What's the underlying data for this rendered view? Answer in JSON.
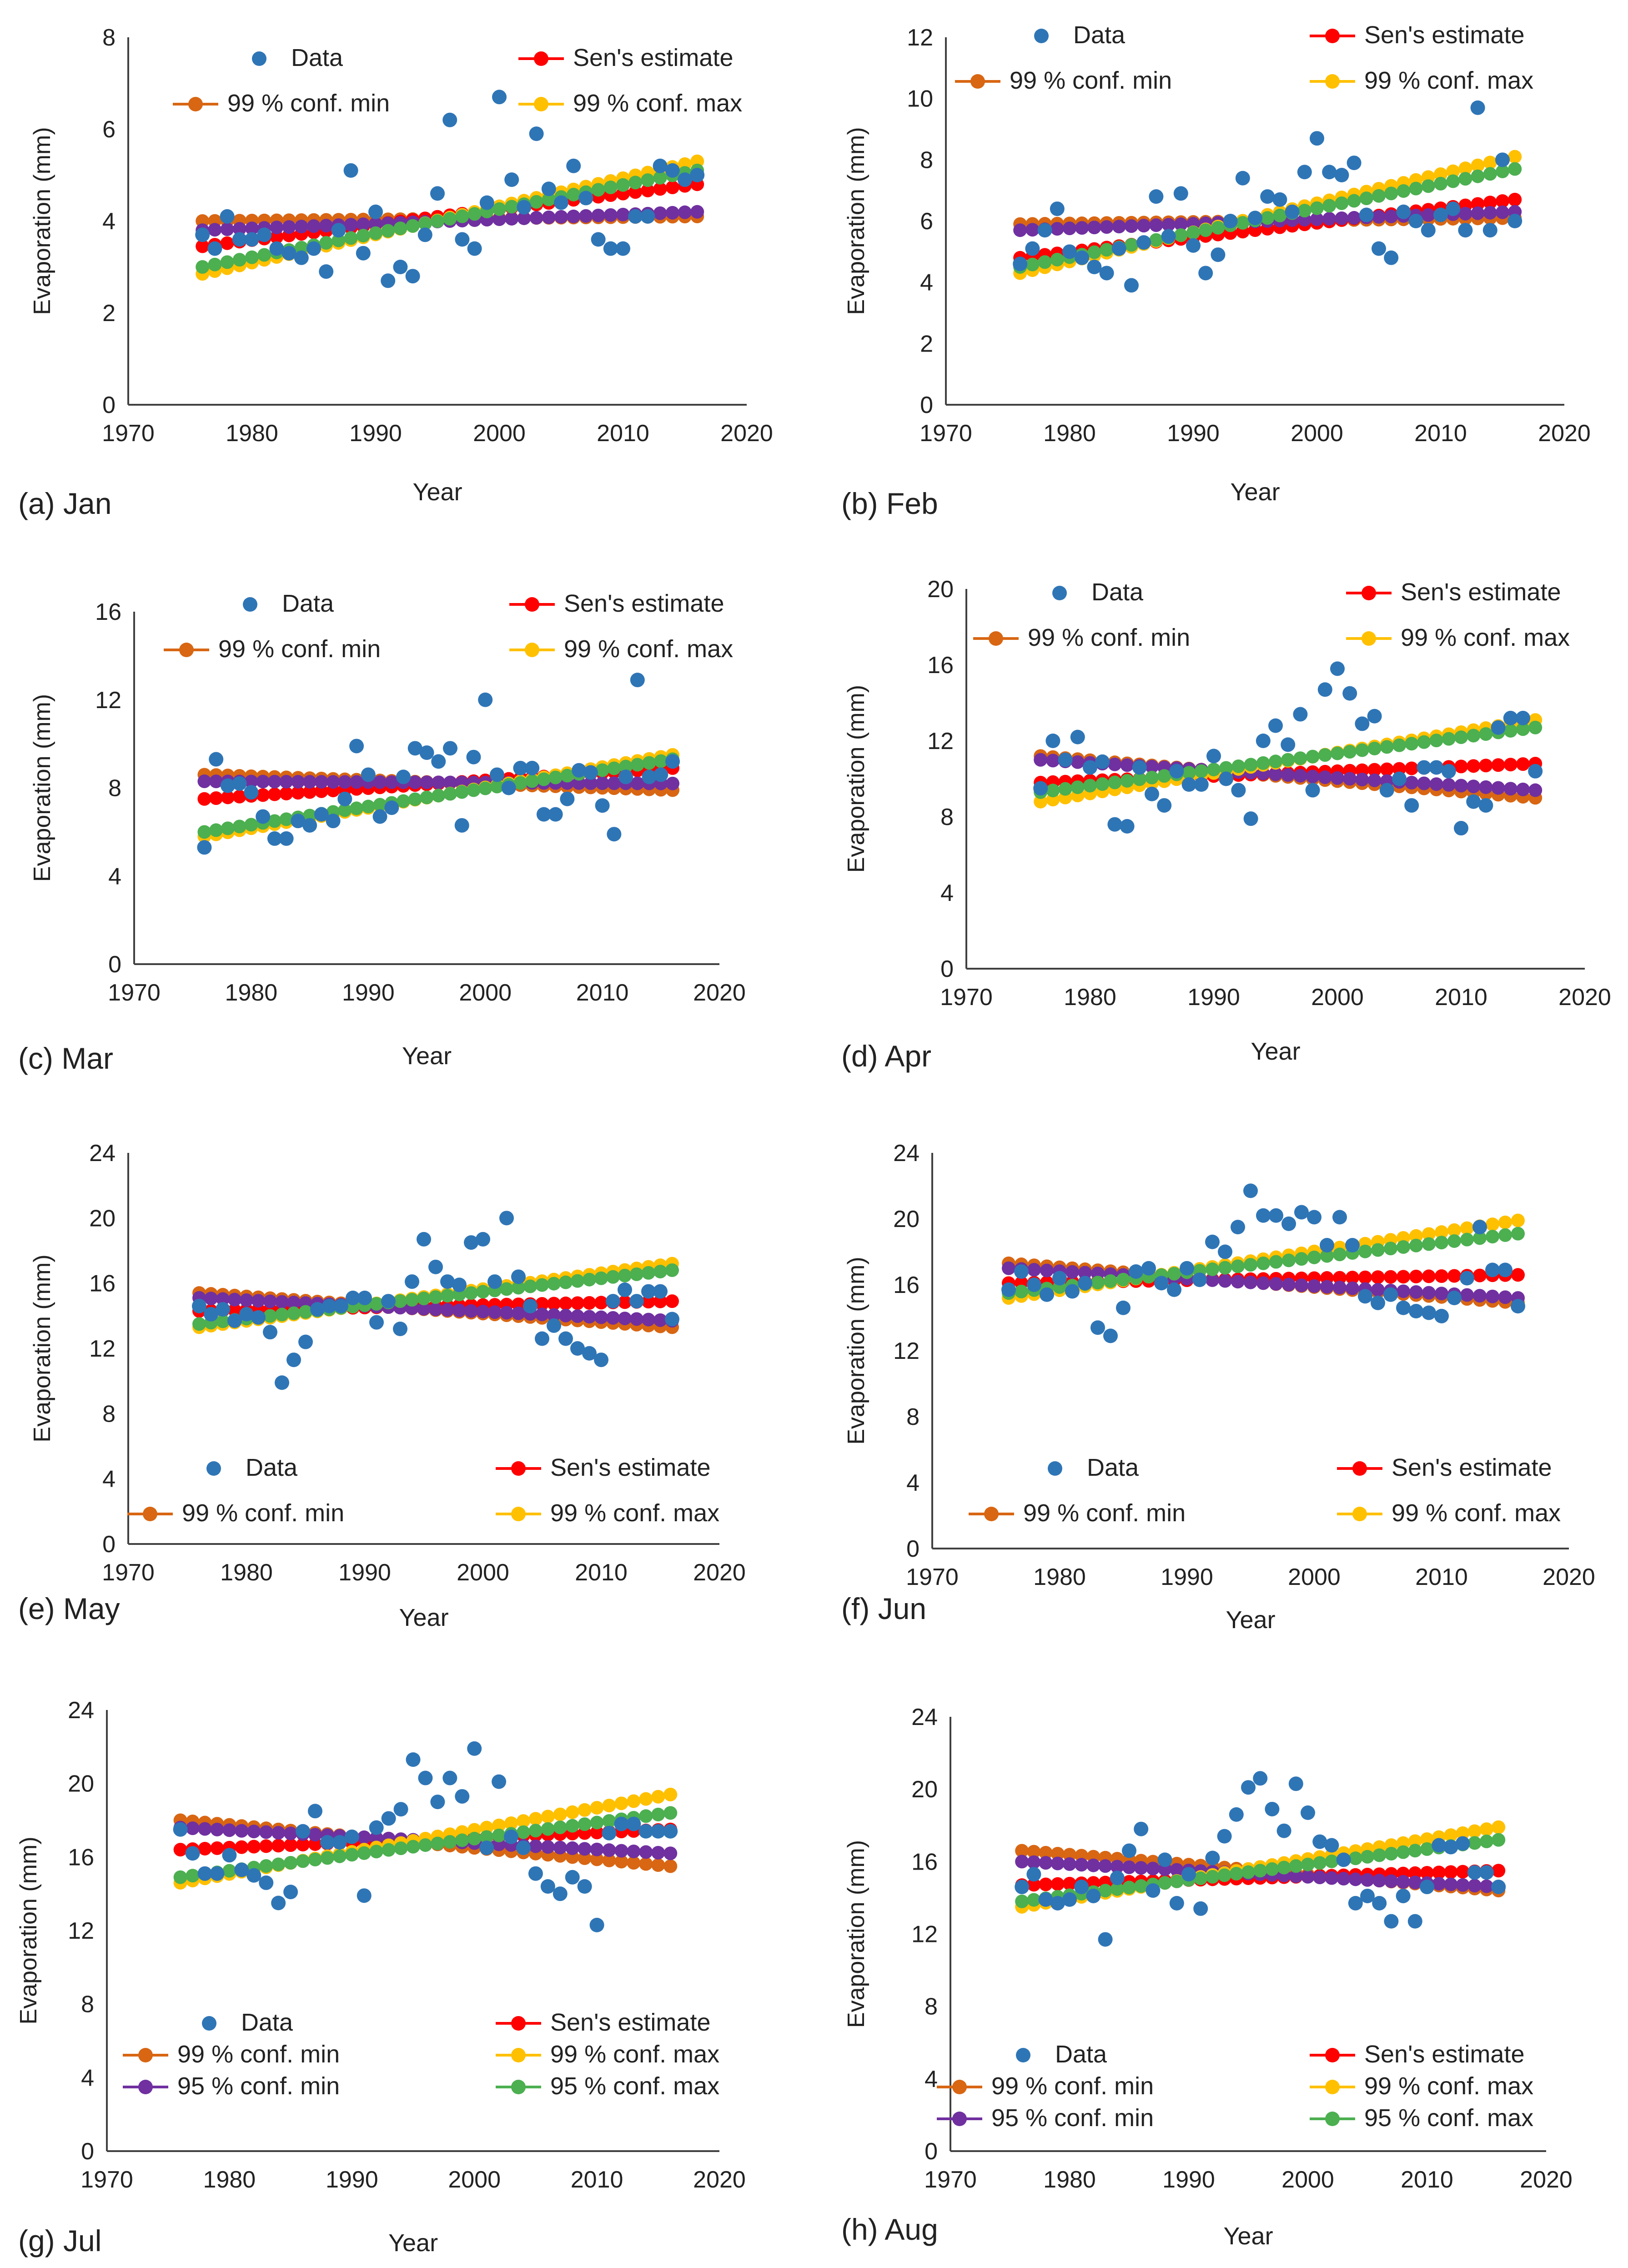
{
  "figure": {
    "ylabel": "Evaporation (mm)",
    "xlabel": "Year",
    "x_ticks": [
      1970,
      1980,
      1990,
      2000,
      2010,
      2020
    ],
    "legend_labels": {
      "data": "Data",
      "sen": "Sen's estimate",
      "c99min": "99 % conf. min",
      "c99max": "99 % conf. max",
      "c95min": "95 % conf. min",
      "c95max": "95 % conf. max"
    },
    "colors": {
      "data": "#2E75B6",
      "sen": "#FF0000",
      "c99min": "#D86613",
      "c99max": "#FFC000",
      "c95min": "#7030A0",
      "c95max": "#4CAF50",
      "axis": "#404040"
    }
  },
  "chart_data": [
    {
      "type": "scatter",
      "label": "(a) Jan",
      "xlim": [
        1970,
        2020
      ],
      "ylim": [
        0,
        8
      ],
      "y_ticks": [
        0,
        2,
        4,
        6,
        8
      ],
      "x": [
        1976,
        1977,
        1978,
        1979,
        1980,
        1981,
        1982,
        1983,
        1984,
        1985,
        1986,
        1987,
        1988,
        1989,
        1990,
        1991,
        1992,
        1993,
        1994,
        1995,
        1996,
        1997,
        1998,
        1999,
        2000,
        2001,
        2002,
        2003,
        2004,
        2005,
        2006,
        2007,
        2008,
        2009,
        2010,
        2011,
        2012,
        2013,
        2014,
        2015,
        2016
      ],
      "values": [
        3.7,
        3.4,
        4.1,
        3.6,
        3.6,
        3.7,
        3.4,
        3.3,
        3.2,
        3.4,
        2.9,
        3.8,
        5.1,
        3.3,
        4.2,
        2.7,
        3.0,
        2.8,
        3.7,
        4.6,
        6.2,
        3.6,
        3.4,
        4.4,
        6.7,
        4.9,
        4.3,
        5.9,
        4.7,
        4.4,
        5.2,
        4.5,
        3.6,
        3.4,
        3.4,
        4.1,
        4.1,
        5.2,
        5.1,
        4.9,
        5.0
      ],
      "trend_lines": {
        "sen": [
          3.45,
          4.8
        ],
        "c99min": [
          4.0,
          4.1
        ],
        "c99max": [
          2.85,
          5.3
        ],
        "c95min": [
          3.8,
          4.2
        ],
        "c95max": [
          3.0,
          5.1
        ]
      },
      "legend": "four"
    },
    {
      "type": "scatter",
      "label": "(b) Feb",
      "xlim": [
        1970,
        2020
      ],
      "ylim": [
        0,
        12
      ],
      "y_ticks": [
        0,
        2,
        4,
        6,
        8,
        10,
        12
      ],
      "x": [
        1976,
        1977,
        1978,
        1979,
        1980,
        1981,
        1982,
        1983,
        1984,
        1985,
        1986,
        1987,
        1988,
        1989,
        1990,
        1991,
        1992,
        1993,
        1994,
        1995,
        1996,
        1997,
        1998,
        1999,
        2000,
        2001,
        2002,
        2003,
        2004,
        2005,
        2006,
        2007,
        2008,
        2009,
        2010,
        2011,
        2012,
        2013,
        2014,
        2015,
        2016
      ],
      "values": [
        4.6,
        5.1,
        5.7,
        6.4,
        5.0,
        4.8,
        4.5,
        4.3,
        5.1,
        3.9,
        5.3,
        6.8,
        5.5,
        6.9,
        5.2,
        4.3,
        4.9,
        6.0,
        7.4,
        6.1,
        6.8,
        6.7,
        6.3,
        7.6,
        8.7,
        7.6,
        7.5,
        7.9,
        6.2,
        5.1,
        4.8,
        6.3,
        6.0,
        5.7,
        6.2,
        6.4,
        5.7,
        9.7,
        5.7,
        8.0,
        6.0
      ],
      "trend_lines": {
        "sen": [
          4.8,
          6.7
        ],
        "c99min": [
          5.9,
          6.1
        ],
        "c99max": [
          4.3,
          8.1
        ],
        "c95min": [
          5.7,
          6.3
        ],
        "c95max": [
          4.5,
          7.7
        ]
      },
      "legend": "four"
    },
    {
      "type": "scatter",
      "label": "(c) Mar",
      "xlim": [
        1970,
        2020
      ],
      "ylim": [
        0,
        16
      ],
      "y_ticks": [
        0,
        4,
        8,
        12,
        16
      ],
      "x": [
        1976,
        1977,
        1978,
        1979,
        1980,
        1981,
        1982,
        1983,
        1984,
        1985,
        1986,
        1987,
        1988,
        1989,
        1990,
        1991,
        1992,
        1993,
        1994,
        1995,
        1996,
        1997,
        1998,
        1999,
        2000,
        2001,
        2002,
        2003,
        2004,
        2005,
        2006,
        2007,
        2008,
        2009,
        2010,
        2011,
        2012,
        2013,
        2014,
        2015,
        2016
      ],
      "values": [
        5.3,
        9.3,
        8.1,
        8.2,
        7.8,
        6.7,
        5.7,
        5.7,
        6.5,
        6.3,
        6.8,
        6.5,
        7.5,
        9.9,
        8.6,
        6.7,
        7.1,
        8.5,
        9.8,
        9.6,
        9.2,
        9.8,
        6.3,
        9.4,
        12.0,
        8.6,
        8.0,
        8.9,
        8.9,
        6.8,
        6.8,
        7.5,
        8.8,
        8.7,
        7.2,
        5.9,
        8.5,
        12.9,
        8.5,
        8.6,
        9.2
      ],
      "trend_lines": {
        "sen": [
          7.5,
          8.9
        ],
        "c99min": [
          8.6,
          7.9
        ],
        "c99max": [
          5.8,
          9.5
        ],
        "c95min": [
          8.3,
          8.2
        ],
        "c95max": [
          6.0,
          9.3
        ]
      },
      "legend": "four"
    },
    {
      "type": "scatter",
      "label": "(d) Apr",
      "xlim": [
        1970,
        2020
      ],
      "ylim": [
        0,
        20
      ],
      "y_ticks": [
        0,
        4,
        8,
        12,
        16,
        20
      ],
      "x": [
        1976,
        1977,
        1978,
        1979,
        1980,
        1981,
        1982,
        1983,
        1984,
        1985,
        1986,
        1987,
        1988,
        1989,
        1990,
        1991,
        1992,
        1993,
        1994,
        1995,
        1996,
        1997,
        1998,
        1999,
        2000,
        2001,
        2002,
        2003,
        2004,
        2005,
        2006,
        2007,
        2008,
        2009,
        2010,
        2011,
        2012,
        2013,
        2014,
        2015,
        2016
      ],
      "values": [
        9.5,
        12.0,
        11.0,
        12.2,
        10.6,
        10.9,
        7.6,
        7.5,
        10.6,
        9.2,
        8.6,
        10.4,
        9.7,
        9.7,
        11.2,
        10.0,
        9.4,
        7.9,
        12.0,
        12.8,
        11.8,
        13.4,
        9.4,
        14.7,
        15.8,
        14.5,
        12.9,
        13.3,
        9.4,
        10.0,
        8.6,
        10.6,
        10.6,
        10.4,
        7.4,
        8.8,
        8.6,
        12.7,
        13.2,
        13.2,
        10.4
      ],
      "trend_lines": {
        "sen": [
          9.8,
          10.8
        ],
        "c99min": [
          11.2,
          9.0
        ],
        "c99max": [
          8.8,
          13.1
        ],
        "c95min": [
          11.0,
          9.4
        ],
        "c95max": [
          9.3,
          12.7
        ]
      },
      "legend": "four"
    },
    {
      "type": "scatter",
      "label": "(e) May",
      "xlim": [
        1970,
        2020
      ],
      "ylim": [
        0,
        24
      ],
      "y_ticks": [
        0,
        4,
        8,
        12,
        16,
        20,
        24
      ],
      "x": [
        1976,
        1977,
        1978,
        1979,
        1980,
        1981,
        1982,
        1983,
        1984,
        1985,
        1986,
        1987,
        1988,
        1989,
        1990,
        1991,
        1992,
        1993,
        1994,
        1995,
        1996,
        1997,
        1998,
        1999,
        2000,
        2001,
        2002,
        2003,
        2004,
        2005,
        2006,
        2007,
        2008,
        2009,
        2010,
        2011,
        2012,
        2013,
        2014,
        2015,
        2016
      ],
      "values": [
        14.6,
        14.1,
        14.4,
        13.7,
        14.1,
        13.9,
        13.0,
        9.9,
        11.3,
        12.4,
        14.4,
        14.6,
        14.6,
        15.1,
        15.1,
        13.6,
        14.9,
        13.2,
        16.1,
        18.7,
        17.0,
        16.1,
        15.9,
        18.5,
        18.7,
        16.1,
        20.0,
        16.4,
        14.6,
        12.6,
        13.4,
        12.6,
        12.0,
        11.7,
        11.3,
        14.9,
        15.6,
        14.9,
        15.5,
        15.5,
        13.8
      ],
      "trend_lines": {
        "sen": [
          14.3,
          14.9
        ],
        "c99min": [
          15.4,
          13.3
        ],
        "c99max": [
          13.3,
          17.2
        ],
        "c95min": [
          15.1,
          13.7
        ],
        "c95max": [
          13.5,
          16.8
        ]
      },
      "legend": "four"
    },
    {
      "type": "scatter",
      "label": "(f) Jun",
      "xlim": [
        1970,
        2020
      ],
      "ylim": [
        0,
        24
      ],
      "y_ticks": [
        0,
        4,
        8,
        12,
        16,
        20,
        24
      ],
      "x": [
        1976,
        1977,
        1978,
        1979,
        1980,
        1981,
        1982,
        1983,
        1984,
        1985,
        1986,
        1987,
        1988,
        1989,
        1990,
        1991,
        1992,
        1993,
        1994,
        1995,
        1996,
        1997,
        1998,
        1999,
        2000,
        2001,
        2002,
        2003,
        2004,
        2005,
        2006,
        2007,
        2008,
        2009,
        2010,
        2011,
        2012,
        2013,
        2014,
        2015,
        2016
      ],
      "values": [
        15.7,
        16.8,
        16.0,
        15.4,
        16.4,
        15.6,
        16.1,
        13.4,
        12.9,
        14.6,
        16.8,
        17.0,
        16.1,
        15.7,
        17.0,
        16.3,
        18.6,
        18.0,
        19.5,
        21.7,
        20.2,
        20.2,
        19.7,
        20.4,
        20.1,
        18.4,
        20.1,
        18.4,
        15.3,
        14.9,
        15.4,
        14.6,
        14.4,
        14.3,
        14.1,
        15.2,
        16.4,
        19.5,
        16.9,
        16.9,
        14.7
      ],
      "trend_lines": {
        "sen": [
          16.1,
          16.6
        ],
        "c99min": [
          17.3,
          14.9
        ],
        "c99max": [
          15.2,
          19.9
        ],
        "c95min": [
          17.0,
          15.2
        ],
        "c95max": [
          15.5,
          19.1
        ]
      },
      "legend": "four"
    },
    {
      "type": "scatter",
      "label": "(g) Jul",
      "xlim": [
        1970,
        2020
      ],
      "ylim": [
        0,
        24
      ],
      "y_ticks": [
        0,
        4,
        8,
        12,
        16,
        20,
        24
      ],
      "x": [
        1976,
        1977,
        1978,
        1979,
        1980,
        1981,
        1982,
        1983,
        1984,
        1985,
        1986,
        1987,
        1988,
        1989,
        1990,
        1991,
        1992,
        1993,
        1994,
        1995,
        1996,
        1997,
        1998,
        1999,
        2000,
        2001,
        2002,
        2003,
        2004,
        2005,
        2006,
        2007,
        2008,
        2009,
        2010,
        2011,
        2012,
        2013,
        2014,
        2015,
        2016
      ],
      "values": [
        17.5,
        16.2,
        15.1,
        15.1,
        16.1,
        15.3,
        15.0,
        14.6,
        13.5,
        14.1,
        17.4,
        18.5,
        16.8,
        16.8,
        17.1,
        13.9,
        17.6,
        18.1,
        18.6,
        21.3,
        20.3,
        19.0,
        20.3,
        19.3,
        21.9,
        16.5,
        20.1,
        17.1,
        16.5,
        15.1,
        14.4,
        14.0,
        14.9,
        14.4,
        12.3,
        17.3,
        17.8,
        17.8,
        17.4,
        17.4,
        17.4
      ],
      "trend_lines": {
        "sen": [
          16.4,
          17.5
        ],
        "c99min": [
          18.0,
          15.5
        ],
        "c99max": [
          14.6,
          19.4
        ],
        "c95min": [
          17.6,
          16.2
        ],
        "c95max": [
          14.9,
          18.4
        ]
      },
      "legend": "six"
    },
    {
      "type": "scatter",
      "label": "(h) Aug",
      "xlim": [
        1970,
        2020
      ],
      "ylim": [
        0,
        24
      ],
      "y_ticks": [
        0,
        4,
        8,
        12,
        16,
        20,
        24
      ],
      "x": [
        1976,
        1977,
        1978,
        1979,
        1980,
        1981,
        1982,
        1983,
        1984,
        1985,
        1986,
        1987,
        1988,
        1989,
        1990,
        1991,
        1992,
        1993,
        1994,
        1995,
        1996,
        1997,
        1998,
        1999,
        2000,
        2001,
        2002,
        2003,
        2004,
        2005,
        2006,
        2007,
        2008,
        2009,
        2010,
        2011,
        2012,
        2013,
        2014,
        2015,
        2016
      ],
      "values": [
        14.6,
        15.3,
        13.9,
        13.7,
        13.9,
        14.6,
        14.1,
        11.7,
        15.1,
        16.6,
        17.8,
        14.4,
        16.1,
        13.7,
        15.3,
        13.4,
        16.2,
        17.4,
        18.6,
        20.1,
        20.6,
        18.9,
        17.7,
        20.3,
        18.7,
        17.1,
        16.9,
        16.1,
        13.7,
        14.1,
        13.7,
        12.7,
        14.1,
        12.7,
        14.6,
        16.9,
        16.8,
        17.0,
        15.4,
        15.4,
        14.6
      ],
      "trend_lines": {
        "sen": [
          14.7,
          15.5
        ],
        "c99min": [
          16.6,
          14.4
        ],
        "c99max": [
          13.5,
          17.9
        ],
        "c95min": [
          16.0,
          14.6
        ],
        "c95max": [
          13.8,
          17.2
        ]
      },
      "legend": "six"
    }
  ]
}
